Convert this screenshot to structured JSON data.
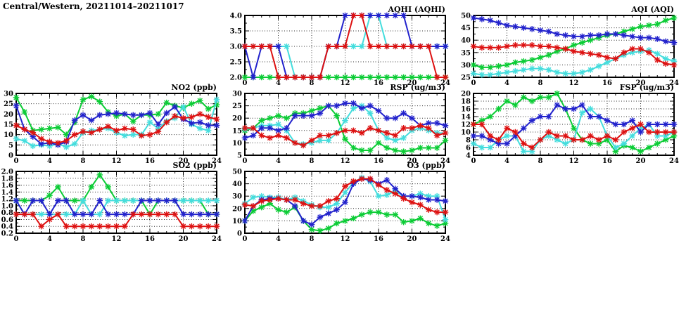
{
  "page_title": "Central/Western, 20211014–20211017",
  "palette": {
    "blue": "#2222cc",
    "red": "#dd1111",
    "green": "#0bcc35",
    "cyan": "#44dddd"
  },
  "chart_data": [
    {
      "id": "aqhi",
      "type": "line",
      "title": "AQHI (AQHI)",
      "xlim": [
        0,
        24
      ],
      "xticks": [
        0,
        4,
        8,
        12,
        16,
        20,
        24
      ],
      "ylim": [
        2.0,
        4.0
      ],
      "yticks": [
        2.0,
        2.5,
        3.0,
        3.5,
        4.0
      ],
      "ytick_labels": [
        "2.0",
        "2.5",
        "3.0",
        "3.5",
        "4.0"
      ],
      "grid": true,
      "series": [
        {
          "name": "green",
          "color": "green",
          "values": [
            2,
            2,
            2,
            2,
            2,
            2,
            2,
            2,
            2,
            2,
            2,
            2,
            2,
            2,
            2,
            2,
            2,
            2,
            2,
            2,
            2,
            2,
            2,
            2,
            2
          ]
        },
        {
          "name": "cyan",
          "color": "cyan",
          "values": [
            3,
            3,
            3,
            3,
            3,
            3,
            2,
            2,
            2,
            2,
            3,
            3,
            3,
            3,
            3,
            4,
            4,
            3,
            3,
            3,
            3,
            3,
            3,
            3,
            3
          ]
        },
        {
          "name": "blue",
          "color": "blue",
          "values": [
            3,
            2,
            3,
            3,
            3,
            2,
            2,
            2,
            2,
            2,
            3,
            3,
            4,
            4,
            4,
            4,
            4,
            4,
            4,
            4,
            3,
            3,
            3,
            3,
            3
          ]
        },
        {
          "name": "red",
          "color": "red",
          "values": [
            3,
            3,
            3,
            3,
            2,
            2,
            2,
            2,
            2,
            2,
            3,
            3,
            3,
            4,
            4,
            3,
            3,
            3,
            3,
            3,
            3,
            3,
            3,
            2,
            2
          ]
        }
      ]
    },
    {
      "id": "aqi",
      "type": "line",
      "title": "AQI (AQI)",
      "xlim": [
        0,
        24
      ],
      "xticks": [
        0,
        4,
        8,
        12,
        16,
        20,
        24
      ],
      "ylim": [
        25,
        50
      ],
      "yticks": [
        25,
        30,
        35,
        40,
        45,
        50
      ],
      "ytick_labels": [
        "25",
        "30",
        "35",
        "40",
        "45",
        "50"
      ],
      "grid": true,
      "series": [
        {
          "name": "green",
          "color": "green",
          "values": [
            30,
            29,
            29,
            29.5,
            30,
            31,
            31.5,
            32,
            33,
            34,
            35.5,
            36.5,
            38,
            39,
            40,
            41,
            42,
            42.5,
            43.5,
            44.5,
            45.5,
            46,
            46.5,
            48,
            49
          ]
        },
        {
          "name": "cyan",
          "color": "cyan",
          "values": [
            26.5,
            26,
            26,
            26.5,
            27,
            27.5,
            28,
            28.5,
            28.5,
            28,
            27,
            26.5,
            26.5,
            27,
            28,
            29.5,
            31,
            32.5,
            34,
            35,
            35.5,
            36,
            34.5,
            32.5,
            31.5
          ]
        },
        {
          "name": "blue",
          "color": "blue",
          "values": [
            49,
            48.5,
            48,
            47,
            46,
            45.5,
            45,
            44.5,
            44,
            43.5,
            42.5,
            42,
            41.5,
            41.5,
            42,
            42,
            42.5,
            42.5,
            42,
            41.5,
            41,
            41,
            40.5,
            39.5,
            39
          ]
        },
        {
          "name": "red",
          "color": "red",
          "values": [
            37.5,
            37,
            37,
            37,
            37.5,
            38,
            38,
            38,
            37.5,
            37.5,
            37,
            36.5,
            35.5,
            35,
            34.5,
            34,
            33,
            32.5,
            35,
            36.5,
            36.5,
            35,
            32,
            30.5,
            30
          ]
        }
      ]
    },
    {
      "id": "no2",
      "type": "line",
      "title": "NO2 (ppb)",
      "xlim": [
        0,
        24
      ],
      "xticks": [
        0,
        4,
        8,
        12,
        16,
        20,
        24
      ],
      "ylim": [
        0,
        30
      ],
      "yticks": [
        0,
        5,
        10,
        15,
        20,
        25,
        30
      ],
      "ytick_labels": [
        "0",
        "5",
        "10",
        "15",
        "20",
        "25",
        "30"
      ],
      "grid": true,
      "series": [
        {
          "name": "green",
          "color": "green",
          "values": [
            28,
            21,
            12,
            12.5,
            13,
            13.5,
            10,
            16,
            27,
            28.5,
            26,
            21,
            19,
            20,
            16.5,
            19.5,
            19.5,
            20,
            25.5,
            24,
            23,
            25,
            26.5,
            22.5,
            24.5
          ]
        },
        {
          "name": "cyan",
          "color": "cyan",
          "values": [
            8,
            7,
            4.5,
            5,
            4.5,
            5.5,
            4,
            5.5,
            11,
            12,
            12.5,
            13,
            11,
            9.5,
            10,
            10,
            16,
            13,
            16.5,
            18,
            23.5,
            15,
            13,
            12,
            27
          ]
        },
        {
          "name": "blue",
          "color": "blue",
          "values": [
            24,
            12.5,
            9,
            5.5,
            6,
            5,
            6.5,
            17,
            19.5,
            17,
            19.5,
            20,
            20.5,
            20,
            19.5,
            19.5,
            20.5,
            15,
            20.5,
            23.5,
            17.5,
            15.5,
            16,
            14.5,
            14.5
          ]
        },
        {
          "name": "red",
          "color": "red",
          "values": [
            14.5,
            12.5,
            11,
            8,
            6.5,
            6,
            7,
            10,
            11.5,
            11,
            12.5,
            14,
            12,
            13,
            12.5,
            9.5,
            10,
            11.5,
            16,
            19,
            18,
            18.5,
            20,
            18.5,
            17.5
          ]
        }
      ]
    },
    {
      "id": "rsp",
      "type": "line",
      "title": "RSP (ug/m3)",
      "xlim": [
        0,
        24
      ],
      "xticks": [
        0,
        4,
        8,
        12,
        16,
        20,
        24
      ],
      "ylim": [
        5,
        30
      ],
      "yticks": [
        5,
        10,
        15,
        20,
        25,
        30
      ],
      "ytick_labels": [
        "5",
        "10",
        "15",
        "20",
        "25",
        "30"
      ],
      "grid": true,
      "series": [
        {
          "name": "green",
          "color": "green",
          "values": [
            15,
            16,
            19,
            20,
            21,
            20,
            22,
            22,
            23,
            24,
            25,
            21,
            11.5,
            8,
            7,
            7,
            10,
            8,
            7,
            6.5,
            7,
            8,
            8,
            8,
            11
          ]
        },
        {
          "name": "cyan",
          "color": "cyan",
          "values": [
            15.5,
            16,
            17,
            17,
            17.5,
            15,
            10,
            9.5,
            10,
            11,
            11,
            14,
            19,
            24,
            25,
            22,
            15,
            12,
            11,
            12,
            15,
            16,
            15,
            14,
            14
          ]
        },
        {
          "name": "blue",
          "color": "blue",
          "values": [
            12,
            13,
            16,
            16,
            15,
            16,
            21,
            21,
            21,
            22,
            25,
            25,
            26,
            26,
            24,
            25,
            23,
            20,
            20,
            22,
            20,
            17,
            18,
            18,
            17
          ]
        },
        {
          "name": "red",
          "color": "red",
          "values": [
            16,
            16,
            13,
            12,
            13,
            12,
            10,
            9,
            11,
            13,
            13,
            14,
            15,
            15,
            14,
            16,
            15,
            14,
            13,
            16,
            16,
            17,
            16,
            13,
            14
          ]
        }
      ]
    },
    {
      "id": "fsp",
      "type": "line",
      "title": "FSP (ug/m3)",
      "xlim": [
        0,
        24
      ],
      "xticks": [
        0,
        4,
        8,
        12,
        16,
        20,
        24
      ],
      "ylim": [
        4,
        20
      ],
      "yticks": [
        4,
        6,
        8,
        10,
        12,
        14,
        16,
        18,
        20
      ],
      "ytick_labels": [
        "4",
        "6",
        "8",
        "10",
        "12",
        "14",
        "16",
        "18",
        "20"
      ],
      "grid": true,
      "series": [
        {
          "name": "green",
          "color": "green",
          "values": [
            12,
            13,
            14,
            16,
            18,
            17,
            19,
            18,
            19,
            19,
            20,
            16,
            11,
            8,
            7,
            7,
            8,
            5,
            6.5,
            6,
            5,
            6,
            7,
            8,
            9
          ]
        },
        {
          "name": "cyan",
          "color": "cyan",
          "values": [
            7,
            6,
            6,
            8,
            9,
            9,
            5,
            5,
            8,
            9,
            8,
            7,
            8,
            15,
            16,
            14,
            9,
            6,
            7,
            9,
            11,
            12,
            9,
            9,
            10
          ]
        },
        {
          "name": "blue",
          "color": "blue",
          "values": [
            9,
            9,
            8,
            7,
            7,
            9,
            11,
            13,
            14,
            14,
            17,
            16,
            16,
            17,
            14,
            14,
            13,
            12,
            12,
            13,
            10,
            12,
            12,
            12,
            12
          ]
        },
        {
          "name": "red",
          "color": "red",
          "values": [
            12,
            12,
            9,
            8,
            11,
            10,
            7,
            6,
            8,
            10,
            9,
            9,
            8,
            8,
            9,
            8,
            9,
            8,
            10,
            11,
            12,
            10,
            10,
            10,
            10
          ]
        }
      ]
    },
    {
      "id": "so2",
      "type": "line",
      "title": "SO2 (ppb)",
      "xlim": [
        0,
        24
      ],
      "xticks": [
        0,
        4,
        8,
        12,
        16,
        20,
        24
      ],
      "ylim": [
        0.2,
        2.0
      ],
      "yticks": [
        0.2,
        0.4,
        0.6,
        0.8,
        1.0,
        1.2,
        1.4,
        1.6,
        1.8,
        2.0
      ],
      "ytick_labels": [
        "0.2",
        "0.4",
        "0.6",
        "0.8",
        "1.0",
        "1.2",
        "1.4",
        "1.6",
        "1.8",
        "2.0"
      ],
      "grid": true,
      "series": [
        {
          "name": "green",
          "color": "green",
          "values": [
            1.15,
            1.15,
            1.15,
            1.15,
            1.3,
            1.55,
            1.15,
            1.15,
            1.15,
            1.55,
            1.9,
            1.55,
            1.15,
            1.15,
            1.15,
            1.15,
            0.75,
            1.15,
            1.15,
            1.15,
            1.15,
            1.15,
            1.15,
            0.75,
            0.75
          ]
        },
        {
          "name": "cyan",
          "color": "cyan",
          "values": [
            1.15,
            0.75,
            0.75,
            0.75,
            0.75,
            0.75,
            0.75,
            0.75,
            1.15,
            0.75,
            0.75,
            1.15,
            1.15,
            1.15,
            1.15,
            1.15,
            1.15,
            1.15,
            1.15,
            1.15,
            1.15,
            1.15,
            1.15,
            1.15,
            1.15
          ]
        },
        {
          "name": "blue",
          "color": "blue",
          "values": [
            1.15,
            0.75,
            1.15,
            1.15,
            0.75,
            1.15,
            1.15,
            0.75,
            0.75,
            0.75,
            1.15,
            0.75,
            0.75,
            0.75,
            0.75,
            1.15,
            1.15,
            1.15,
            1.15,
            1.15,
            0.75,
            0.75,
            0.75,
            0.75,
            0.75
          ]
        },
        {
          "name": "red",
          "color": "red",
          "values": [
            0.75,
            0.75,
            0.75,
            0.4,
            0.6,
            0.75,
            0.4,
            0.4,
            0.4,
            0.4,
            0.4,
            0.4,
            0.4,
            0.4,
            0.75,
            0.75,
            0.75,
            0.75,
            0.75,
            0.75,
            0.4,
            0.4,
            0.4,
            0.4,
            0.4
          ]
        }
      ]
    },
    {
      "id": "o3",
      "type": "line",
      "title": "O3 (ppb)",
      "xlim": [
        0,
        24
      ],
      "xticks": [
        0,
        4,
        8,
        12,
        16,
        20,
        24
      ],
      "ylim": [
        0,
        50
      ],
      "yticks": [
        0,
        10,
        20,
        30,
        40,
        50
      ],
      "ytick_labels": [
        "0",
        "10",
        "20",
        "30",
        "40",
        "50"
      ],
      "grid": true,
      "series": [
        {
          "name": "green",
          "color": "green",
          "values": [
            10,
            18,
            21,
            24,
            19,
            17,
            21,
            10,
            3,
            2,
            4,
            8,
            10,
            12,
            15,
            17,
            17,
            15,
            15,
            9,
            10,
            12,
            8,
            6,
            8
          ]
        },
        {
          "name": "cyan",
          "color": "cyan",
          "values": [
            24,
            29,
            30,
            29,
            29,
            27,
            29,
            26,
            23,
            21,
            21,
            24,
            33,
            41,
            45,
            42,
            30,
            31,
            34,
            30,
            30,
            32,
            30,
            30,
            11
          ]
        },
        {
          "name": "blue",
          "color": "blue",
          "values": [
            10,
            22,
            27,
            28,
            28,
            27,
            22,
            10,
            7,
            13,
            16,
            19,
            25,
            40,
            44,
            43,
            40,
            43,
            36,
            30,
            30,
            29,
            27,
            27,
            26
          ]
        },
        {
          "name": "red",
          "color": "red",
          "values": [
            23,
            22,
            26,
            27,
            28,
            27,
            27,
            24,
            22,
            22,
            26,
            28,
            38,
            42,
            44,
            44,
            39,
            35,
            32,
            28,
            25,
            23,
            19,
            17,
            17
          ]
        }
      ]
    }
  ]
}
